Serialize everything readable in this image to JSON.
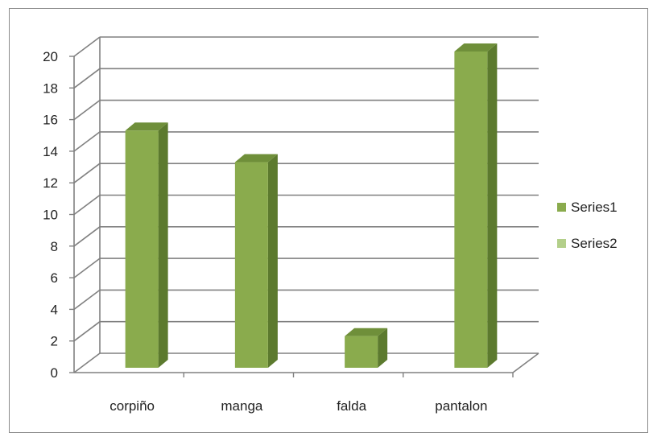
{
  "chart_data": {
    "type": "bar",
    "style": "3d-column",
    "categories": [
      "corpiño",
      "manga",
      "falda",
      "pantalon"
    ],
    "series": [
      {
        "name": "Series1",
        "values": [
          15,
          13,
          2,
          20
        ],
        "color": "#8aab4d"
      },
      {
        "name": "Series2",
        "values": [
          0,
          0,
          0,
          0
        ],
        "color": "#b3cf8a"
      }
    ],
    "ylim": [
      0,
      20
    ],
    "yticks": [
      "0",
      "2",
      "4",
      "6",
      "8",
      "10",
      "12",
      "14",
      "16",
      "18",
      "20"
    ],
    "grid": true,
    "legend": "right"
  },
  "colors": {
    "bar_front": "#8aab4d",
    "bar_side": "#5c7a2e",
    "bar_top": "#6f8f3a",
    "grid": "#808080",
    "frame": "#8c8c8c"
  }
}
